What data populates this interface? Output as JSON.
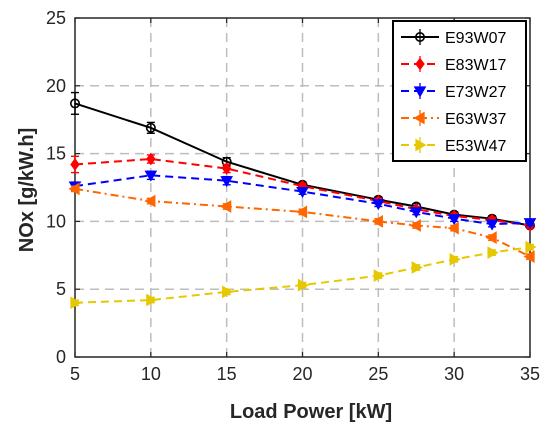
{
  "chart_data": {
    "type": "line",
    "xlabel": "Load Power [kW]",
    "ylabel": "NOx [g/kW.h]",
    "xlim": [
      5,
      35
    ],
    "ylim": [
      0,
      25
    ],
    "xticks": [
      5,
      10,
      15,
      20,
      25,
      30,
      35
    ],
    "yticks": [
      0,
      5,
      10,
      15,
      20,
      25
    ],
    "grid": true,
    "legend_position": "top-right",
    "series": [
      {
        "name": "E93W07",
        "color": "#000000",
        "line_style": "solid",
        "marker": "circle",
        "x": [
          5,
          10,
          15,
          20,
          25,
          27.5,
          30,
          32.5,
          35
        ],
        "y": [
          18.7,
          16.9,
          14.4,
          12.7,
          11.6,
          11.1,
          10.5,
          10.2,
          9.7
        ],
        "error": [
          0.8,
          0.4,
          0.3,
          0.2,
          0.2,
          0.2,
          0.2,
          0.2,
          0.2
        ]
      },
      {
        "name": "E83W17",
        "color": "#ff0000",
        "line_style": "dashed",
        "marker": "diamond",
        "x": [
          5,
          10,
          15,
          20,
          25,
          27.5,
          30,
          32.5,
          35
        ],
        "y": [
          14.2,
          14.6,
          13.9,
          12.6,
          11.5,
          10.9,
          10.4,
          10.1,
          9.7
        ],
        "error": [
          0.6,
          0.3,
          0.3,
          0.2,
          0.2,
          0.2,
          0.2,
          0.2,
          0.2
        ]
      },
      {
        "name": "E73W27",
        "color": "#0000ff",
        "line_style": "dashed",
        "marker": "triangle-down",
        "x": [
          5,
          10,
          15,
          20,
          25,
          27.5,
          30,
          32.5,
          35
        ],
        "y": [
          12.6,
          13.4,
          13.0,
          12.2,
          11.3,
          10.7,
          10.2,
          9.8,
          9.9
        ],
        "error": [
          0.3,
          0.3,
          0.3,
          0.2,
          0.2,
          0.2,
          0.2,
          0.2,
          0.2
        ]
      },
      {
        "name": "E63W37",
        "color": "#ff6600",
        "line_style": "dash-dot",
        "marker": "triangle-left",
        "x": [
          5,
          10,
          15,
          20,
          25,
          27.5,
          30,
          32.5,
          35
        ],
        "y": [
          12.4,
          11.5,
          11.1,
          10.7,
          10.0,
          9.7,
          9.5,
          8.8,
          7.4
        ],
        "error": [
          0.2,
          0.2,
          0.2,
          0.2,
          0.2,
          0.2,
          0.2,
          0.2,
          0.2
        ]
      },
      {
        "name": "E53W47",
        "color": "#e6c800",
        "line_style": "dashed",
        "marker": "triangle-right",
        "x": [
          5,
          10,
          15,
          20,
          25,
          27.5,
          30,
          32.5,
          35
        ],
        "y": [
          4.0,
          4.2,
          4.8,
          5.3,
          6.0,
          6.6,
          7.2,
          7.7,
          8.1
        ],
        "error": [
          0.2,
          0.2,
          0.2,
          0.2,
          0.2,
          0.2,
          0.2,
          0.2,
          0.2
        ]
      }
    ]
  }
}
